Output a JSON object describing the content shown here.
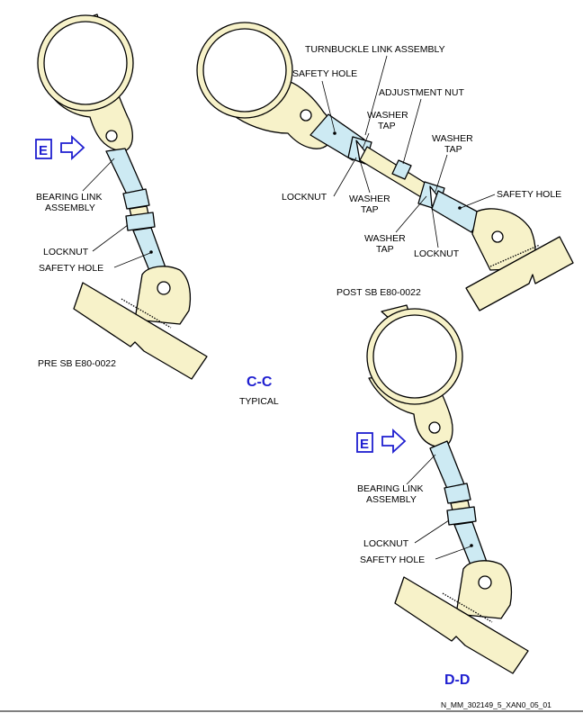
{
  "labels": {
    "turnbuckle": "TURNBUCKLE LINK ASSEMBLY",
    "safety_hole": "SAFETY HOLE",
    "adjustment_nut": "ADJUSTMENT NUT",
    "washer_tap_1": [
      "WASHER",
      "TAP"
    ],
    "washer_tap_2": [
      "WASHER",
      "TAP"
    ],
    "washer_tap_3": [
      "WASHER",
      "TAP"
    ],
    "washer_tap_4": [
      "WASHER",
      "TAP"
    ],
    "locknut": "LOCKNUT",
    "bearing_link": [
      "BEARING LINK",
      "ASSEMBLY"
    ],
    "pre_sb": "PRE SB E80-0022",
    "post_sb": "POST SB E80-0022",
    "view_cc": "C-C",
    "typical": "TYPICAL",
    "view_dd": "D-D",
    "view_e": "E",
    "drawing_code": "N_MM_302149_5_XAN0_05_01"
  },
  "colors": {
    "part_fill": "#f7f2c9",
    "link_fill": "#cdeaf3",
    "view_label": "#1f1fd0"
  }
}
